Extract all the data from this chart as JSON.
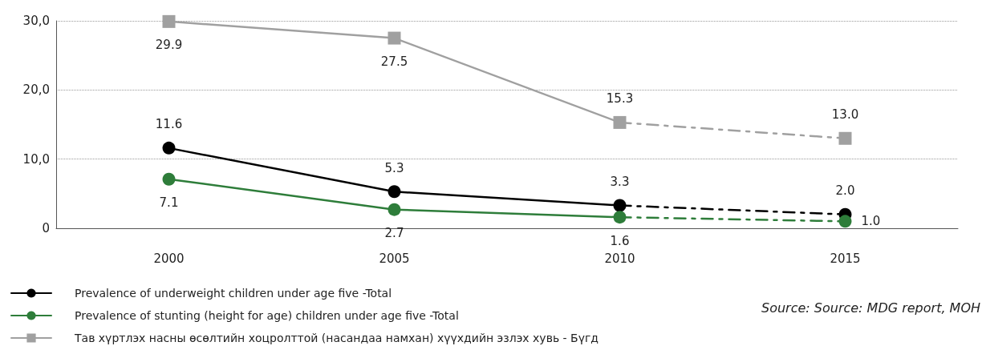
{
  "chart_data": {
    "type": "line",
    "categories": [
      "2000",
      "2005",
      "2010",
      "2015"
    ],
    "series": [
      {
        "name": "Prevalence of underweight children under age five -Total",
        "color": "#000000",
        "marker": "circle",
        "line_style": "solid",
        "values": [
          11.6,
          5.3,
          3.3,
          null
        ]
      },
      {
        "name": "Prevalence of stunting (height for age) children under age five -Total",
        "color": "#2e7d3a",
        "marker": "circle",
        "line_style": "solid",
        "values": [
          7.1,
          2.7,
          1.6,
          null
        ]
      },
      {
        "name": "Тав хүртлэх насны өсөлтийн хоцролттой (насандаа намхан) хүүхдийн эзлэх хувь - Бүгд",
        "color": "#a0a0a0",
        "marker": "square",
        "line_style": "solid",
        "values": [
          29.9,
          27.5,
          15.3,
          null
        ]
      },
      {
        "color": "#000000",
        "marker": "circle",
        "line_style": "dashed",
        "values": [
          null,
          null,
          3.3,
          2.0
        ],
        "value_labels": [
          null,
          null,
          null,
          "2.0"
        ]
      },
      {
        "color": "#2e7d3a",
        "marker": "circle",
        "line_style": "dashed",
        "values": [
          null,
          null,
          1.6,
          1.0
        ],
        "value_labels": [
          null,
          null,
          null,
          "1.0"
        ]
      },
      {
        "color": "#a0a0a0",
        "marker": "square",
        "line_style": "dashed",
        "values": [
          null,
          null,
          15.3,
          13.0
        ],
        "value_labels": [
          null,
          null,
          null,
          "13.0"
        ]
      }
    ],
    "data_labels": true,
    "ylim": [
      0,
      30
    ],
    "yticks": [
      0,
      {
        "value": 10,
        "label": "10,0"
      },
      {
        "value": 20,
        "label": "20,0"
      },
      {
        "value": 30,
        "label": "30,0"
      }
    ],
    "grid": "y",
    "legend": "bottom left",
    "annotations": [
      "Source: Source: MDG report, MOH"
    ]
  }
}
